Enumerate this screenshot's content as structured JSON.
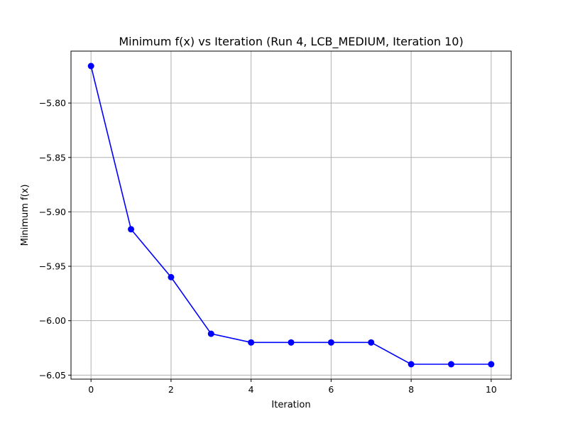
{
  "chart_data": {
    "type": "line",
    "title": "Minimum f(x) vs Iteration (Run 4, LCB_MEDIUM, Iteration 10)",
    "xlabel": "Iteration",
    "ylabel": "Minimum f(x)",
    "x": [
      0,
      1,
      2,
      3,
      4,
      5,
      6,
      7,
      8,
      9,
      10
    ],
    "series": [
      {
        "values": [
          -5.766,
          -5.916,
          -5.96,
          -6.012,
          -6.02,
          -6.02,
          -6.02,
          -6.02,
          -6.04,
          -6.04,
          -6.04
        ],
        "color": "#0000ff",
        "marker": "circle"
      }
    ],
    "xlim": [
      -0.5,
      10.5
    ],
    "ylim": [
      -6.0537,
      -5.7523
    ],
    "xticks": [
      0,
      2,
      4,
      6,
      8,
      10
    ],
    "xtick_labels": [
      "0",
      "2",
      "4",
      "6",
      "8",
      "10"
    ],
    "yticks": [
      -5.8,
      -5.85,
      -5.9,
      -5.95,
      -6.0,
      -6.05
    ],
    "ytick_labels": [
      "−5.80",
      "−5.85",
      "−5.90",
      "−5.95",
      "−6.00",
      "−6.05"
    ],
    "grid": true
  }
}
